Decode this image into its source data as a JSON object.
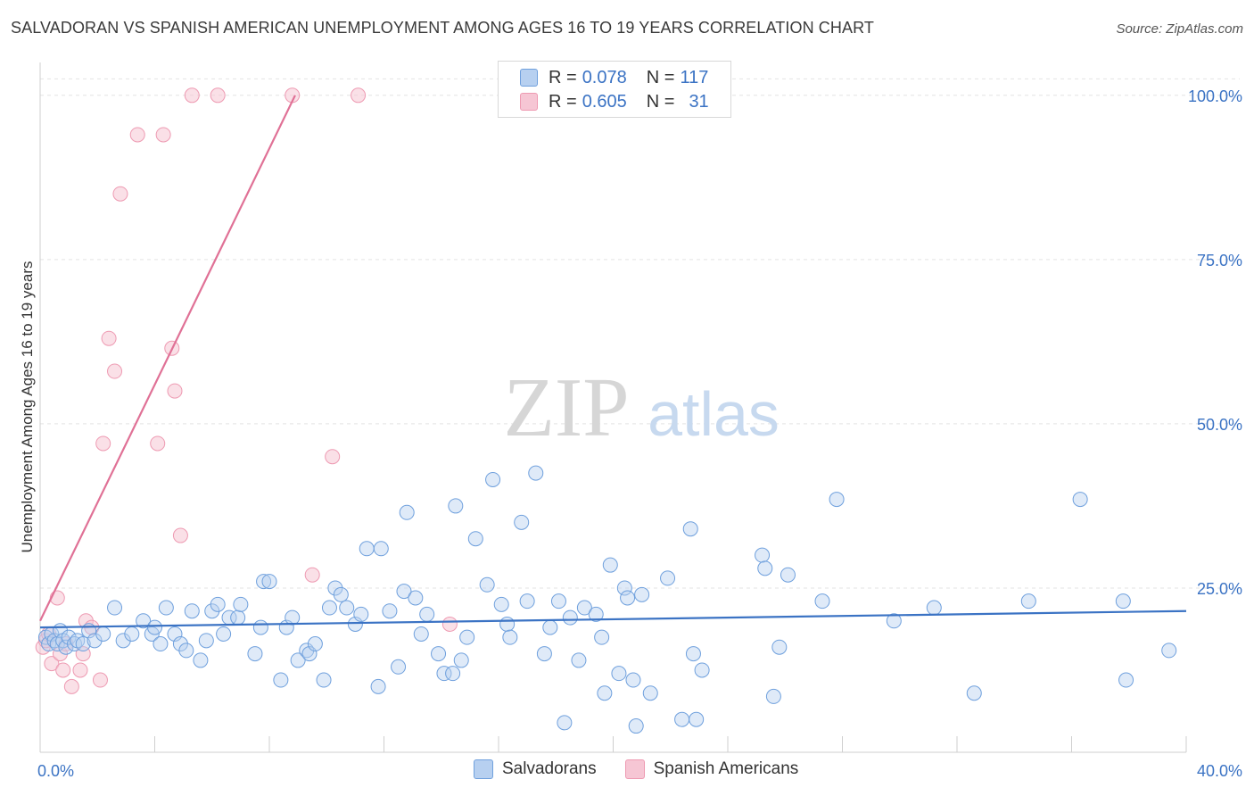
{
  "title": "SALVADORAN VS SPANISH AMERICAN UNEMPLOYMENT AMONG AGES 16 TO 19 YEARS CORRELATION CHART",
  "source": "Source: ZipAtlas.com",
  "watermark": {
    "zip": "ZIP",
    "atlas": "atlas"
  },
  "legend": {
    "salvadorans": {
      "r_label": "R =",
      "r_value": "0.078",
      "n_label": "N =",
      "n_value": "117"
    },
    "spanish": {
      "r_label": "R =",
      "r_value": "0.605",
      "n_label": "N =",
      "n_value": "31"
    }
  },
  "chart_data": {
    "type": "scatter",
    "title": "SALVADORAN VS SPANISH AMERICAN UNEMPLOYMENT AMONG AGES 16 TO 19 YEARS CORRELATION CHART",
    "xlabel": "",
    "ylabel": "Unemployment Among Ages 16 to 19 years",
    "xlim": [
      0,
      40
    ],
    "ylim": [
      0,
      105
    ],
    "x_tick_labels": [
      "0.0%",
      "40.0%"
    ],
    "y_tick_labels": [
      "25.0%",
      "50.0%",
      "75.0%",
      "100.0%"
    ],
    "y_ticks": [
      25,
      50,
      75,
      100
    ],
    "grid": true,
    "legend_placement": "top-center",
    "series": [
      {
        "name": "Salvadorans",
        "color": "#6fa0dd",
        "fill": "#b7d0f0",
        "trend": {
          "x": [
            0,
            40
          ],
          "y": [
            19.0,
            21.5
          ],
          "color": "#3b73c4"
        },
        "points": [
          [
            0.2,
            17.5
          ],
          [
            0.3,
            16.5
          ],
          [
            0.4,
            18
          ],
          [
            0.5,
            17
          ],
          [
            0.6,
            16.5
          ],
          [
            0.7,
            18.5
          ],
          [
            0.8,
            17
          ],
          [
            0.9,
            16
          ],
          [
            1.0,
            17.5
          ],
          [
            1.2,
            16.5
          ],
          [
            1.3,
            17
          ],
          [
            1.5,
            16.5
          ],
          [
            1.7,
            18.5
          ],
          [
            1.9,
            17
          ],
          [
            2.2,
            18
          ],
          [
            2.6,
            22
          ],
          [
            2.9,
            17
          ],
          [
            3.2,
            18
          ],
          [
            3.6,
            20
          ],
          [
            3.9,
            18
          ],
          [
            4.0,
            19
          ],
          [
            4.2,
            16.5
          ],
          [
            4.4,
            22
          ],
          [
            4.7,
            18
          ],
          [
            4.9,
            16.5
          ],
          [
            5.1,
            15.5
          ],
          [
            5.3,
            21.5
          ],
          [
            5.6,
            14
          ],
          [
            5.8,
            17
          ],
          [
            6.0,
            21.5
          ],
          [
            6.2,
            22.5
          ],
          [
            6.4,
            18
          ],
          [
            6.6,
            20.5
          ],
          [
            6.9,
            20.5
          ],
          [
            7.0,
            22.5
          ],
          [
            7.5,
            15
          ],
          [
            7.7,
            19
          ],
          [
            7.8,
            26
          ],
          [
            8.0,
            26
          ],
          [
            8.4,
            11
          ],
          [
            8.6,
            19
          ],
          [
            8.8,
            20.5
          ],
          [
            9.0,
            14
          ],
          [
            9.3,
            15.5
          ],
          [
            9.4,
            15
          ],
          [
            9.6,
            16.5
          ],
          [
            9.9,
            11
          ],
          [
            10.1,
            22
          ],
          [
            10.3,
            25
          ],
          [
            10.5,
            24
          ],
          [
            10.7,
            22
          ],
          [
            11.0,
            19.5
          ],
          [
            11.2,
            21
          ],
          [
            11.4,
            31
          ],
          [
            11.8,
            10
          ],
          [
            11.9,
            31
          ],
          [
            12.2,
            21.5
          ],
          [
            12.5,
            13
          ],
          [
            12.7,
            24.5
          ],
          [
            12.8,
            36.5
          ],
          [
            13.1,
            23.5
          ],
          [
            13.3,
            18
          ],
          [
            13.5,
            21
          ],
          [
            13.9,
            15
          ],
          [
            14.1,
            12
          ],
          [
            14.4,
            12
          ],
          [
            14.5,
            37.5
          ],
          [
            14.7,
            14
          ],
          [
            14.9,
            17.5
          ],
          [
            15.2,
            32.5
          ],
          [
            15.6,
            25.5
          ],
          [
            15.8,
            41.5
          ],
          [
            16.1,
            22.5
          ],
          [
            16.3,
            19.5
          ],
          [
            16.4,
            17.5
          ],
          [
            16.8,
            35
          ],
          [
            17.0,
            23
          ],
          [
            17.3,
            42.5
          ],
          [
            17.6,
            15
          ],
          [
            17.8,
            19
          ],
          [
            18.1,
            23
          ],
          [
            18.3,
            4.5
          ],
          [
            18.5,
            20.5
          ],
          [
            18.8,
            14
          ],
          [
            19.0,
            22
          ],
          [
            19.4,
            21
          ],
          [
            19.6,
            17.5
          ],
          [
            19.7,
            9
          ],
          [
            19.9,
            28.5
          ],
          [
            20.2,
            12
          ],
          [
            20.4,
            25
          ],
          [
            20.5,
            23.5
          ],
          [
            20.7,
            11
          ],
          [
            20.8,
            4
          ],
          [
            21.0,
            24
          ],
          [
            21.3,
            9
          ],
          [
            21.9,
            26.5
          ],
          [
            22.4,
            5
          ],
          [
            22.7,
            34
          ],
          [
            22.8,
            15
          ],
          [
            22.9,
            5
          ],
          [
            23.1,
            12.5
          ],
          [
            25.2,
            30
          ],
          [
            25.3,
            28
          ],
          [
            25.6,
            8.5
          ],
          [
            25.8,
            16
          ],
          [
            26.1,
            27
          ],
          [
            27.3,
            23
          ],
          [
            27.8,
            38.5
          ],
          [
            29.8,
            20
          ],
          [
            31.2,
            22
          ],
          [
            32.6,
            9
          ],
          [
            34.5,
            23
          ],
          [
            36.3,
            38.5
          ],
          [
            37.8,
            23
          ],
          [
            37.9,
            11
          ],
          [
            39.4,
            15.5
          ]
        ]
      },
      {
        "name": "Spanish Americans",
        "color": "#ee9ab2",
        "fill": "#f6c6d4",
        "trend": {
          "x": [
            0,
            8.9
          ],
          "y": [
            20.0,
            100.0
          ],
          "color": "#e07196"
        },
        "points": [
          [
            0.1,
            16
          ],
          [
            0.2,
            17
          ],
          [
            0.3,
            18
          ],
          [
            0.4,
            13.5
          ],
          [
            0.6,
            23.5
          ],
          [
            0.7,
            15
          ],
          [
            0.8,
            12.5
          ],
          [
            0.9,
            16.5
          ],
          [
            1.1,
            10
          ],
          [
            1.4,
            12.5
          ],
          [
            1.5,
            15
          ],
          [
            1.6,
            20
          ],
          [
            1.8,
            19
          ],
          [
            2.1,
            11
          ],
          [
            2.2,
            47
          ],
          [
            2.4,
            63
          ],
          [
            2.6,
            58
          ],
          [
            2.8,
            85
          ],
          [
            3.4,
            94
          ],
          [
            4.1,
            47
          ],
          [
            4.3,
            94
          ],
          [
            4.6,
            61.5
          ],
          [
            4.7,
            55
          ],
          [
            4.9,
            33
          ],
          [
            5.3,
            100
          ],
          [
            6.2,
            100
          ],
          [
            8.8,
            100
          ],
          [
            9.5,
            27
          ],
          [
            10.2,
            45
          ],
          [
            11.1,
            100
          ],
          [
            14.3,
            19.5
          ]
        ]
      }
    ]
  },
  "bottom_legend": {
    "salvadorans": "Salvadorans",
    "spanish": "Spanish Americans"
  }
}
